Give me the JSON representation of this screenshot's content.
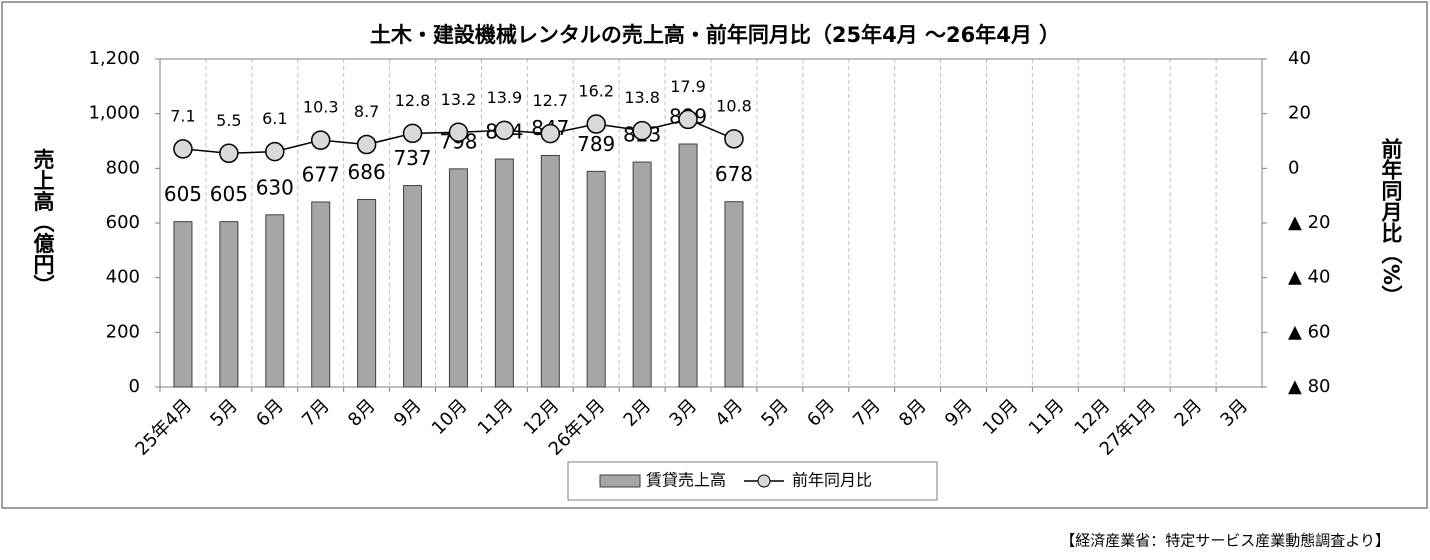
{
  "chart_data": {
    "type": "bar_line",
    "title": "土木・建設機械レンタルの売上高・前年同月比（25年4月 ～26年4月 ）",
    "ylabel": "売上高（億円）",
    "y2label": "前年同月比（%）",
    "source": "【経済産業省：特定サービス産業動態調査より】",
    "categories": [
      "25年4月",
      "5月",
      "6月",
      "7月",
      "8月",
      "9月",
      "10月",
      "11月",
      "12月",
      "26年1月",
      "2月",
      "3月",
      "4月",
      "5月",
      "6月",
      "7月",
      "8月",
      "9月",
      "10月",
      "11月",
      "12月",
      "27年1月",
      "2月",
      "3月"
    ],
    "series": [
      {
        "name": "賃貸売上高",
        "type": "bar",
        "color": "#a6a6a6",
        "values": [
          605,
          605,
          630,
          677,
          686,
          737,
          798,
          834,
          847,
          789,
          823,
          889,
          678,
          null,
          null,
          null,
          null,
          null,
          null,
          null,
          null,
          null,
          null,
          null
        ]
      },
      {
        "name": "前年同月比",
        "type": "line",
        "color": "#000000",
        "marker_color": "#d9d9d9",
        "axis": "y2",
        "values": [
          7.1,
          5.5,
          6.1,
          10.3,
          8.7,
          12.8,
          13.2,
          13.9,
          12.7,
          16.2,
          13.8,
          17.9,
          10.8,
          null,
          null,
          null,
          null,
          null,
          null,
          null,
          null,
          null,
          null,
          null
        ]
      }
    ],
    "ylim": [
      0,
      1200
    ],
    "yticks": [
      0,
      200,
      400,
      600,
      800,
      {
        "value": 1000,
        "label": "1,000"
      },
      {
        "value": 1200,
        "label": "1,200"
      }
    ],
    "y2lim": [
      -80,
      40
    ],
    "y2ticks": [
      {
        "value": -80,
        "label": "▲ 80"
      },
      {
        "value": -60,
        "label": "▲ 60"
      },
      {
        "value": -40,
        "label": "▲ 40"
      },
      {
        "value": -20,
        "label": "▲ 20"
      },
      0,
      20,
      40
    ],
    "xgrid": true,
    "legend": "bottom"
  }
}
